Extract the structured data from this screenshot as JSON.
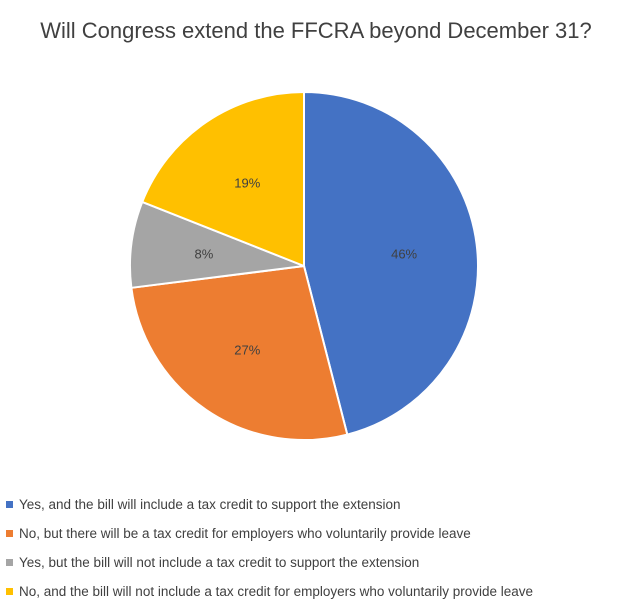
{
  "chart_data": {
    "type": "pie",
    "title": "Will Congress extend the FFCRA beyond December 31?",
    "slices": [
      {
        "label": "Yes, and the bill will include a tax credit to support the extension",
        "value": 46,
        "display": "46%",
        "color": "#4472C4"
      },
      {
        "label": "No, but there will be a tax credit for employers who voluntarily provide leave",
        "value": 27,
        "display": "27%",
        "color": "#ED7D31"
      },
      {
        "label": "Yes, but the bill will not include a tax credit to support the extension",
        "value": 8,
        "display": "8%",
        "color": "#A5A5A5"
      },
      {
        "label": "No, and the bill will not include a tax credit for employers who voluntarily provide leave",
        "value": 19,
        "display": "19%",
        "color": "#FFC000"
      }
    ],
    "legend_position": "bottom"
  }
}
